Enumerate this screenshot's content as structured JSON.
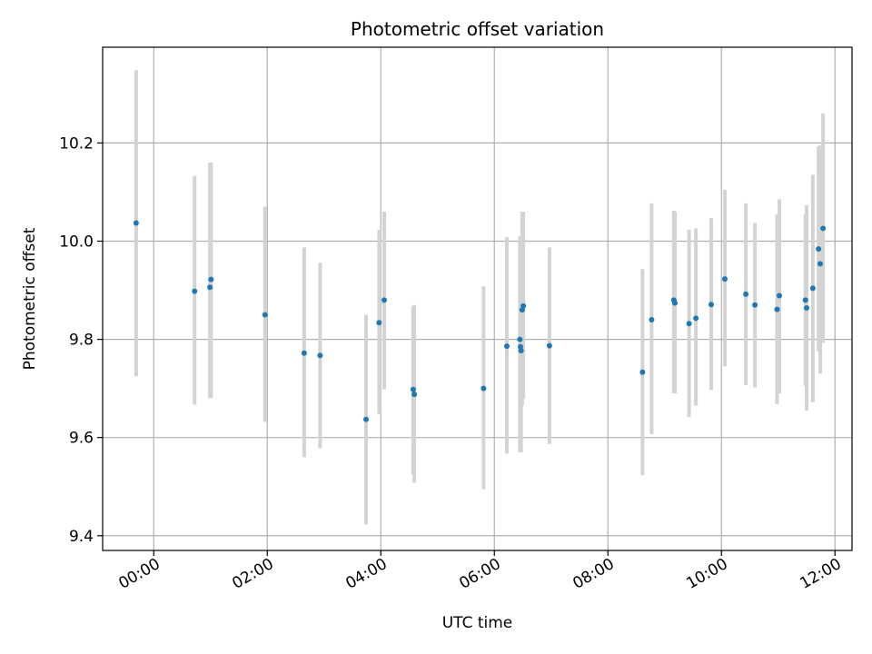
{
  "chart_data": {
    "type": "scatter",
    "title": "Photometric offset variation",
    "xlabel": "UTC time",
    "ylabel": "Photometric offset",
    "x_unit": "hours UTC",
    "xlim": [
      -0.9,
      12.3
    ],
    "ylim": [
      9.37,
      10.395
    ],
    "grid": true,
    "x_ticks": [
      {
        "value": 0,
        "label": "00:00"
      },
      {
        "value": 2,
        "label": "02:00"
      },
      {
        "value": 4,
        "label": "04:00"
      },
      {
        "value": 6,
        "label": "06:00"
      },
      {
        "value": 8,
        "label": "08:00"
      },
      {
        "value": 10,
        "label": "10:00"
      },
      {
        "value": 12,
        "label": "12:00"
      }
    ],
    "y_ticks": [
      {
        "value": 9.4,
        "label": "9.4"
      },
      {
        "value": 9.6,
        "label": "9.6"
      },
      {
        "value": 9.8,
        "label": "9.8"
      },
      {
        "value": 10.0,
        "label": "10.0"
      },
      {
        "value": 10.2,
        "label": "10.2"
      }
    ],
    "colors": {
      "points": "#1f77b4",
      "errorbars": "#d3d3d3",
      "grid": "#b0b0b0"
    },
    "series": [
      {
        "points": [
          {
            "x": -0.31,
            "y": 10.037,
            "ylo": 9.725,
            "yhi": 10.348
          },
          {
            "x": 0.72,
            "y": 9.898,
            "ylo": 9.667,
            "yhi": 10.133
          },
          {
            "x": 0.99,
            "y": 9.906,
            "ylo": 9.68,
            "yhi": 10.16
          },
          {
            "x": 1.01,
            "y": 9.922,
            "ylo": 9.68,
            "yhi": 10.16
          },
          {
            "x": 1.96,
            "y": 9.85,
            "ylo": 9.632,
            "yhi": 10.07
          },
          {
            "x": 2.65,
            "y": 9.772,
            "ylo": 9.56,
            "yhi": 9.987
          },
          {
            "x": 2.93,
            "y": 9.767,
            "ylo": 9.578,
            "yhi": 9.956
          },
          {
            "x": 3.74,
            "y": 9.637,
            "ylo": 9.423,
            "yhi": 9.85
          },
          {
            "x": 3.97,
            "y": 9.834,
            "ylo": 9.648,
            "yhi": 10.023
          },
          {
            "x": 4.06,
            "y": 9.88,
            "ylo": 9.698,
            "yhi": 10.06
          },
          {
            "x": 4.57,
            "y": 9.698,
            "ylo": 9.525,
            "yhi": 9.868
          },
          {
            "x": 4.59,
            "y": 9.688,
            "ylo": 9.508,
            "yhi": 9.87
          },
          {
            "x": 5.81,
            "y": 9.7,
            "ylo": 9.495,
            "yhi": 9.908
          },
          {
            "x": 6.22,
            "y": 9.786,
            "ylo": 9.567,
            "yhi": 10.008
          },
          {
            "x": 6.45,
            "y": 9.8,
            "ylo": 9.57,
            "yhi": 10.01
          },
          {
            "x": 6.46,
            "y": 9.785,
            "ylo": 9.57,
            "yhi": 10.01
          },
          {
            "x": 6.47,
            "y": 9.777,
            "ylo": 9.57,
            "yhi": 10.0
          },
          {
            "x": 6.49,
            "y": 9.86,
            "ylo": 9.665,
            "yhi": 10.06
          },
          {
            "x": 6.51,
            "y": 9.868,
            "ylo": 9.68,
            "yhi": 10.06
          },
          {
            "x": 6.97,
            "y": 9.787,
            "ylo": 9.587,
            "yhi": 9.987
          },
          {
            "x": 8.61,
            "y": 9.733,
            "ylo": 9.523,
            "yhi": 9.943
          },
          {
            "x": 8.77,
            "y": 9.84,
            "ylo": 9.607,
            "yhi": 10.077
          },
          {
            "x": 9.16,
            "y": 9.88,
            "ylo": 9.69,
            "yhi": 10.062
          },
          {
            "x": 9.18,
            "y": 9.874,
            "ylo": 9.69,
            "yhi": 10.06
          },
          {
            "x": 9.43,
            "y": 9.832,
            "ylo": 9.642,
            "yhi": 10.023
          },
          {
            "x": 9.55,
            "y": 9.843,
            "ylo": 9.665,
            "yhi": 10.026
          },
          {
            "x": 9.82,
            "y": 9.871,
            "ylo": 9.697,
            "yhi": 10.047
          },
          {
            "x": 10.06,
            "y": 9.923,
            "ylo": 9.745,
            "yhi": 10.105
          },
          {
            "x": 10.43,
            "y": 9.892,
            "ylo": 9.707,
            "yhi": 10.077
          },
          {
            "x": 10.59,
            "y": 9.87,
            "ylo": 9.702,
            "yhi": 10.037
          },
          {
            "x": 10.98,
            "y": 9.861,
            "ylo": 9.668,
            "yhi": 10.055
          },
          {
            "x": 11.02,
            "y": 9.889,
            "ylo": 9.69,
            "yhi": 10.085
          },
          {
            "x": 11.48,
            "y": 9.88,
            "ylo": 9.705,
            "yhi": 10.055
          },
          {
            "x": 11.5,
            "y": 9.864,
            "ylo": 9.655,
            "yhi": 10.073
          },
          {
            "x": 11.61,
            "y": 9.904,
            "ylo": 9.672,
            "yhi": 10.135
          },
          {
            "x": 11.71,
            "y": 9.984,
            "ylo": 9.775,
            "yhi": 10.193
          },
          {
            "x": 11.74,
            "y": 9.954,
            "ylo": 9.73,
            "yhi": 10.195
          },
          {
            "x": 11.79,
            "y": 10.026,
            "ylo": 9.793,
            "yhi": 10.26
          }
        ]
      }
    ]
  }
}
